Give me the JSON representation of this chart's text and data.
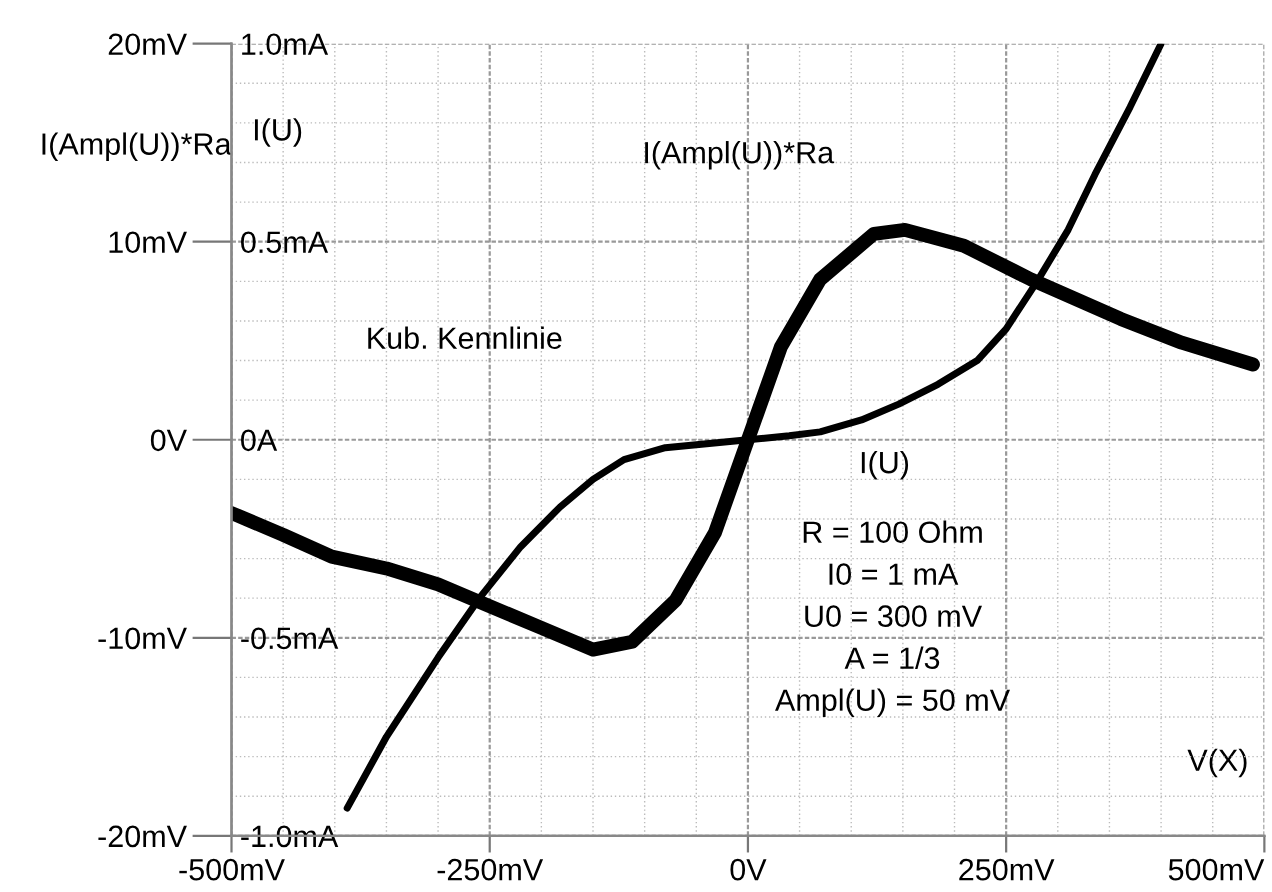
{
  "chart_data": {
    "type": "line",
    "xlabel": "V(X)",
    "ylabel": "I(Ampl(U))*Ra",
    "y2label": "I(U)",
    "xlim": [
      -500,
      500
    ],
    "xticks": [
      {
        "value": -500,
        "label": "-500mV"
      },
      {
        "value": -250,
        "label": "-250mV"
      },
      {
        "value": 0,
        "label": "0V"
      },
      {
        "value": 250,
        "label": "250mV"
      },
      {
        "value": 500,
        "label": "500mV"
      }
    ],
    "ylim": [
      -20,
      20
    ],
    "yticks": [
      {
        "value": -20,
        "label": "-20mV"
      },
      {
        "value": -10,
        "label": "-10mV"
      },
      {
        "value": 0,
        "label": "0V"
      },
      {
        "value": 10,
        "label": "10mV"
      },
      {
        "value": 20,
        "label": "20mV"
      }
    ],
    "y2lim": [
      -1,
      1
    ],
    "y2ticks": [
      {
        "value": -1,
        "label": "-1.0mA"
      },
      {
        "value": -0.5,
        "label": "-0.5mA"
      },
      {
        "value": 0,
        "label": "0A"
      },
      {
        "value": 0.5,
        "label": "0.5mA"
      },
      {
        "value": 1,
        "label": "1.0mA"
      }
    ],
    "grid": true,
    "legend": false,
    "marker": "none",
    "line_style": "solid",
    "series": [
      {
        "name": "I(Ampl(U))*Ra",
        "color": "#000000",
        "axis": "y",
        "x": [
          -500,
          -450,
          -403,
          -350,
          -300,
          -264,
          -200,
          -150,
          -112,
          -70,
          -32,
          0,
          32,
          70,
          122,
          152,
          209,
          274,
          361,
          420,
          489
        ],
        "values": [
          -3.7,
          -4.8,
          -5.9,
          -6.5,
          -7.3,
          -8.1,
          -9.5,
          -10.6,
          -10.2,
          -8.1,
          -4.7,
          0,
          4.7,
          8.1,
          10.4,
          10.6,
          9.8,
          8.1,
          6.1,
          4.9,
          3.8
        ]
      },
      {
        "name": "I(U)",
        "color": "#000000",
        "axis": "y2",
        "x": [
          -388,
          -350,
          -300,
          -260,
          -220,
          -182,
          -150,
          -120,
          -80,
          -40,
          0,
          40,
          70,
          110,
          146,
          184,
          222,
          250,
          280,
          310,
          336,
          370,
          400
        ],
        "values": [
          -0.93,
          -0.75,
          -0.55,
          -0.4,
          -0.27,
          -0.17,
          -0.1,
          -0.05,
          -0.02,
          -0.01,
          0,
          0.01,
          0.02,
          0.05,
          0.09,
          0.14,
          0.2,
          0.28,
          0.4,
          0.53,
          0.67,
          0.84,
          1.0
        ]
      }
    ],
    "annotations": [
      "Kub. Kennlinie",
      "R = 100 Ohm",
      "I0 = 1 mA",
      "U0 = 300 mV",
      "A = 1/3",
      "Ampl(U) = 50 mV"
    ]
  }
}
